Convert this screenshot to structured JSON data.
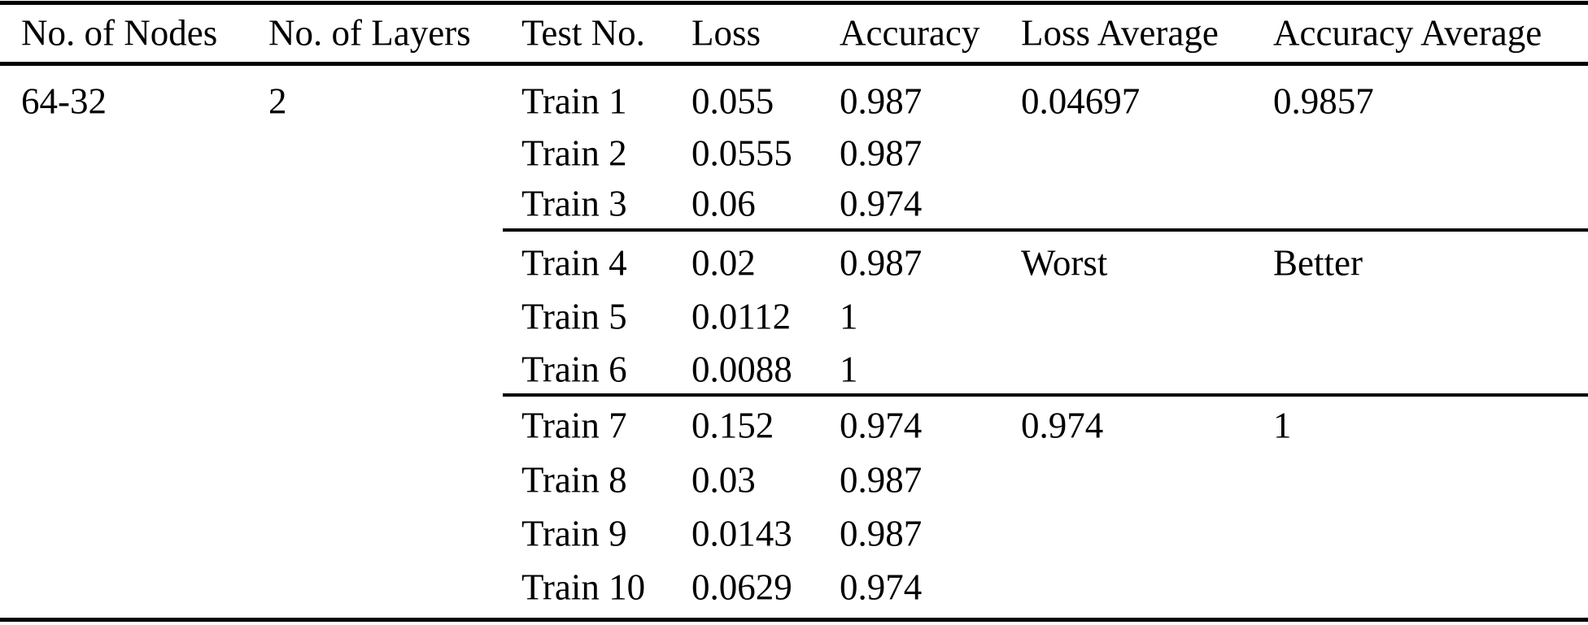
{
  "table": {
    "columns": [
      "No. of Nodes",
      "No. of Layers",
      "Test No.",
      "Loss",
      "Accuracy",
      "Loss Average",
      "Accuracy Average"
    ],
    "rows": [
      {
        "nodes": "64-32",
        "layers": "2",
        "test": "Train 1",
        "loss": "0.055",
        "accuracy": "0.987",
        "loss_average": "0.04697",
        "accuracy_average": "0.9857"
      },
      {
        "test": "Train 2",
        "loss": "0.0555",
        "accuracy": "0.987"
      },
      {
        "test": "Train 3",
        "loss": "0.06",
        "accuracy": "0.974"
      },
      {
        "test": "Train 4",
        "loss": "0.02",
        "accuracy": "0.987",
        "loss_average": "Worst",
        "accuracy_average": "Better"
      },
      {
        "test": "Train 5",
        "loss": "0.0112",
        "accuracy": "1"
      },
      {
        "test": "Train 6",
        "loss": "0.0088",
        "accuracy": "1"
      },
      {
        "test": "Train 7",
        "loss": "0.152",
        "accuracy": "0.974",
        "loss_average": "0.974",
        "accuracy_average": "1"
      },
      {
        "test": "Train 8",
        "loss": "0.03",
        "accuracy": "0.987"
      },
      {
        "test": "Train 9",
        "loss": "0.0143",
        "accuracy": "0.987"
      },
      {
        "test": "Train 10",
        "loss": "0.0629",
        "accuracy": "0.974"
      }
    ]
  },
  "chart_data": {
    "type": "table",
    "columns": [
      "No. of Nodes",
      "No. of Layers",
      "Test No.",
      "Loss",
      "Accuracy",
      "Loss Average",
      "Accuracy Average"
    ],
    "rows": [
      [
        "64-32",
        "2",
        "Train 1",
        "0.055",
        "0.987",
        "0.04697",
        "0.9857"
      ],
      [
        "",
        "",
        "Train 2",
        "0.0555",
        "0.987",
        "",
        ""
      ],
      [
        "",
        "",
        "Train 3",
        "0.06",
        "0.974",
        "",
        ""
      ],
      [
        "",
        "",
        "Train 4",
        "0.02",
        "0.987",
        "Worst",
        "Better"
      ],
      [
        "",
        "",
        "Train 5",
        "0.0112",
        "1",
        "",
        ""
      ],
      [
        "",
        "",
        "Train 6",
        "0.0088",
        "1",
        "",
        ""
      ],
      [
        "",
        "",
        "Train 7",
        "0.152",
        "0.974",
        "0.974",
        "1"
      ],
      [
        "",
        "",
        "Train 8",
        "0.03",
        "0.987",
        "",
        ""
      ],
      [
        "",
        "",
        "Train 9",
        "0.0143",
        "0.987",
        "",
        ""
      ],
      [
        "",
        "",
        "Train 10",
        "0.0629",
        "0.974",
        "",
        ""
      ]
    ],
    "colors": {
      "text": "#000000",
      "rule": "#000000",
      "background": "#ffffff"
    }
  }
}
